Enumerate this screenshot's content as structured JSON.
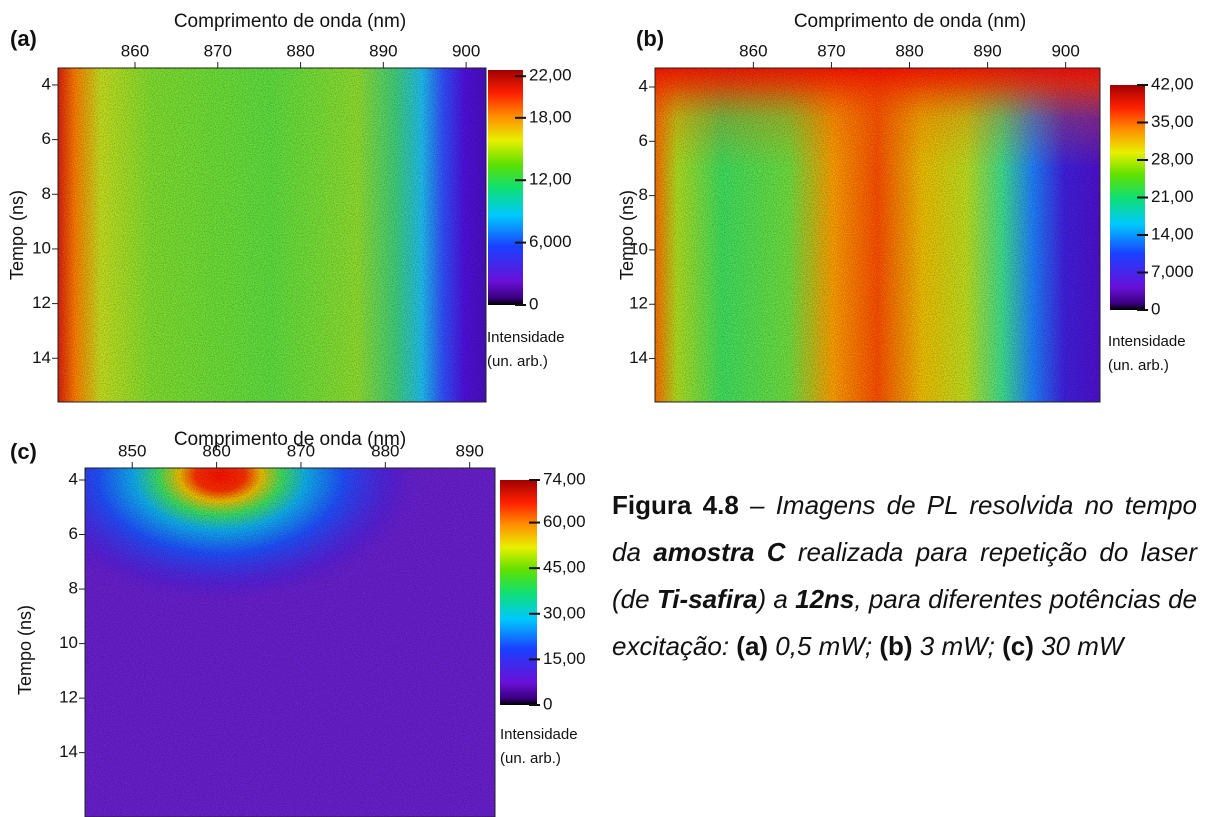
{
  "chart_data": [
    {
      "type": "heatmap",
      "panel_label": "(a)",
      "xlabel": "Comprimento de onda (nm)",
      "ylabel": "Tempo (ns)",
      "xlim": [
        850.7,
        902.4
      ],
      "xticks": [
        860,
        870,
        880,
        890,
        900
      ],
      "ylim": [
        3.38,
        15.6
      ],
      "yticks": [
        4,
        6,
        8,
        10,
        12,
        14
      ],
      "clim": [
        0,
        22.6
      ],
      "cticks": [
        0,
        {
          "value": 6,
          "label": "6,000"
        },
        {
          "value": 12,
          "label": "12,00"
        },
        {
          "value": 18,
          "label": "18,00"
        },
        {
          "value": 22,
          "label": "22,00"
        }
      ],
      "colorbar_label": [
        "Intensidade",
        "(un. arb.)"
      ]
    },
    {
      "type": "heatmap",
      "panel_label": "(b)",
      "xlabel": "Comprimento de onda (nm)",
      "ylabel": "Tempo (ns)",
      "xlim": [
        847.4,
        904.4
      ],
      "xticks": [
        860,
        870,
        880,
        890,
        900
      ],
      "ylim": [
        3.3,
        15.6
      ],
      "yticks": [
        4,
        6,
        8,
        10,
        12,
        14
      ],
      "clim": [
        0,
        42
      ],
      "cticks": [
        0,
        {
          "value": 7,
          "label": "7,000"
        },
        {
          "value": 14,
          "label": "14,00"
        },
        {
          "value": 21,
          "label": "21,00"
        },
        {
          "value": 28,
          "label": "28,00"
        },
        {
          "value": 35,
          "label": "35,00"
        },
        {
          "value": 42,
          "label": "42,00"
        }
      ],
      "colorbar_label": [
        "Intensidade",
        "(un. arb.)"
      ]
    },
    {
      "type": "heatmap",
      "panel_label": "(c)",
      "xlabel": "Comprimento de onda (nm)",
      "ylabel": "Tempo (ns)",
      "xlim": [
        844.4,
        893.0
      ],
      "xticks": [
        850,
        860,
        870,
        880,
        890
      ],
      "ylim": [
        3.56,
        16.36
      ],
      "yticks": [
        4,
        6,
        8,
        10,
        12,
        14
      ],
      "clim": [
        0,
        74
      ],
      "cticks": [
        0,
        {
          "value": 15,
          "label": "15,00"
        },
        {
          "value": 30,
          "label": "30,00"
        },
        {
          "value": 45,
          "label": "45,00"
        },
        {
          "value": 60,
          "label": "60,00"
        },
        {
          "value": 74,
          "label": "74,00"
        }
      ],
      "colorbar_label": [
        "Intensidade",
        "(un. arb.)"
      ]
    }
  ],
  "caption": [
    {
      "text": "Figura 4.8",
      "bold": true,
      "italic": false
    },
    {
      "text": " – Imagens de PL resolvida no tempo da ",
      "bold": false,
      "italic": true
    },
    {
      "text": "amostra C",
      "bold": true,
      "italic": true
    },
    {
      "text": " realizada para repetição do laser (de ",
      "bold": false,
      "italic": true
    },
    {
      "text": "Ti-safira",
      "bold": true,
      "italic": true
    },
    {
      "text": ") a ",
      "bold": false,
      "italic": true
    },
    {
      "text": "12ns",
      "bold": true,
      "italic": true
    },
    {
      "text": ", para diferentes potências de excitação: ",
      "bold": false,
      "italic": true
    },
    {
      "text": "(a)",
      "bold": true,
      "italic": false
    },
    {
      "text": " 0,5 mW; ",
      "bold": false,
      "italic": true
    },
    {
      "text": "(b)",
      "bold": true,
      "italic": false
    },
    {
      "text": " 3 mW; ",
      "bold": false,
      "italic": true
    },
    {
      "text": "(c)",
      "bold": true,
      "italic": false
    },
    {
      "text": " 30 mW",
      "bold": false,
      "italic": true
    }
  ]
}
